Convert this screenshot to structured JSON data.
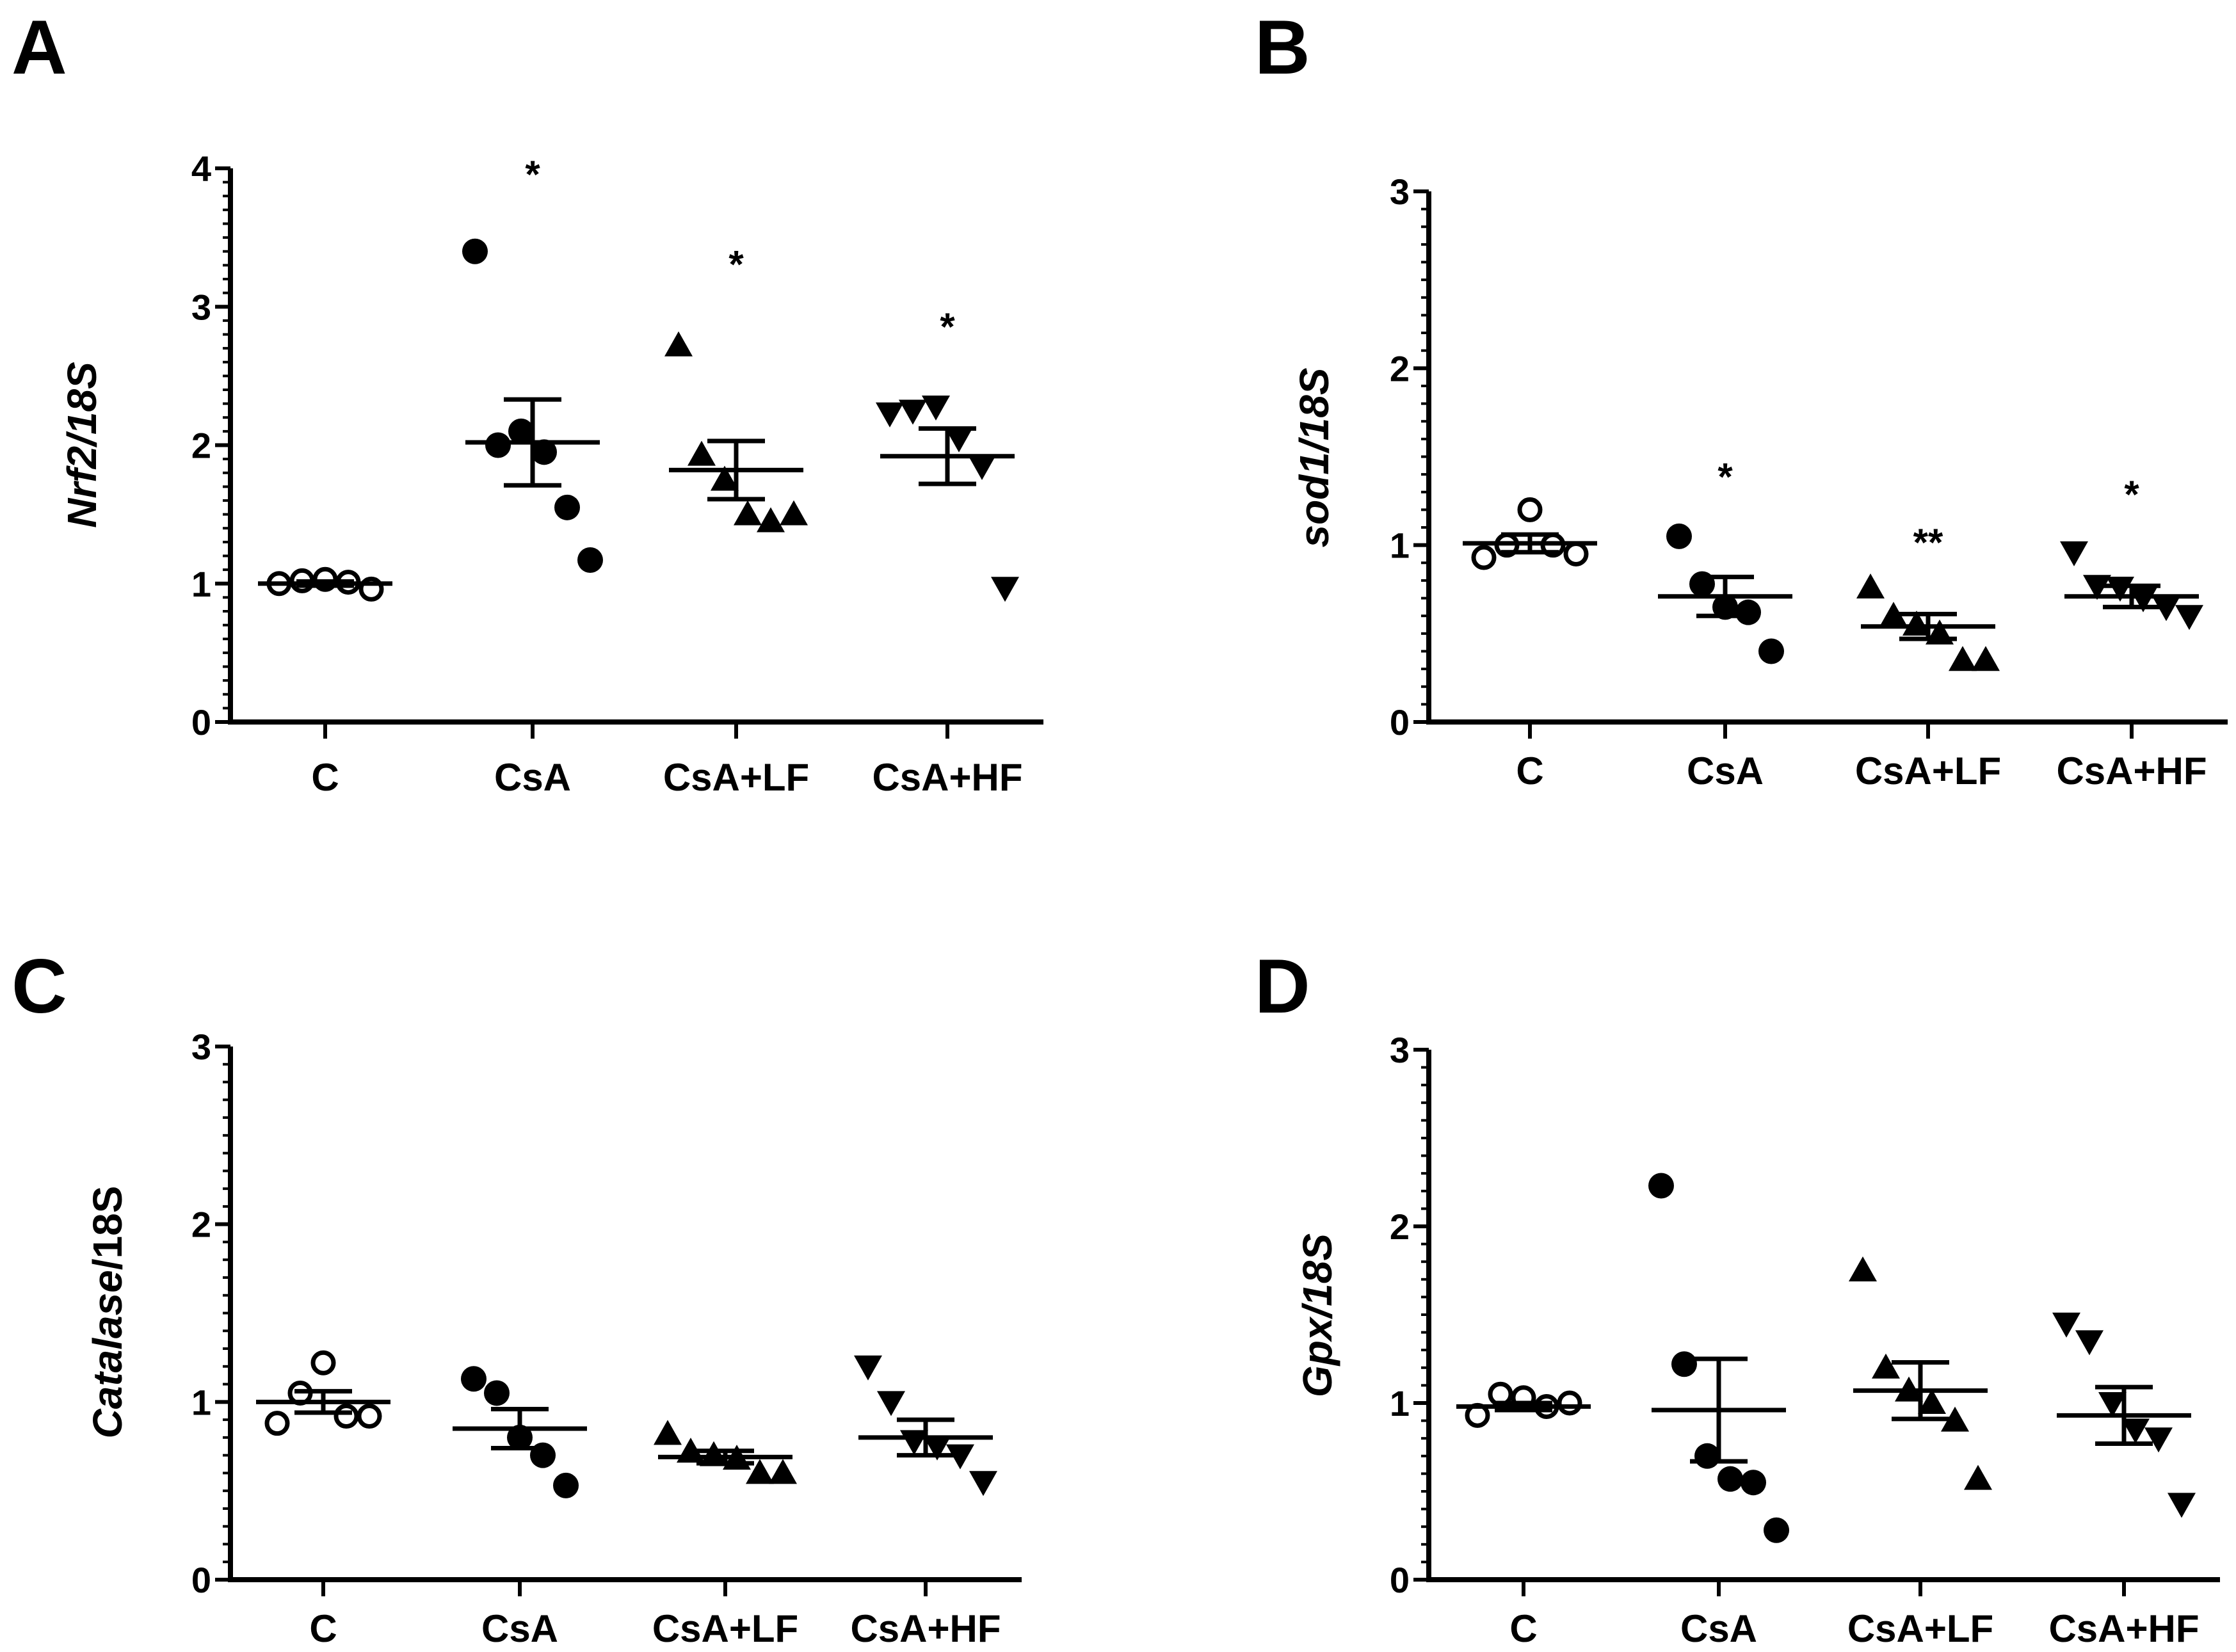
{
  "chart_data": [
    {
      "panel": "A",
      "type": "scatter",
      "ylabel_parts": [
        {
          "text": "Nrf2/18S",
          "italic": true
        }
      ],
      "ylim": [
        0,
        4
      ],
      "yticks": [
        0,
        1,
        2,
        3,
        4
      ],
      "categories": [
        "C",
        "CsA",
        "CsA+LF",
        "CsA+HF"
      ],
      "markers": [
        "circle-open",
        "circle-filled",
        "triangle-up",
        "triangle-down"
      ],
      "points": [
        [
          1.0,
          1.02,
          1.03,
          1.01,
          0.96
        ],
        [
          3.4,
          2.0,
          2.1,
          1.95,
          1.55,
          1.17
        ],
        [
          2.72,
          1.93,
          1.75,
          1.5,
          1.45,
          1.5
        ],
        [
          2.23,
          2.25,
          2.28,
          2.05,
          1.85,
          0.97
        ]
      ],
      "mean": [
        1.0,
        2.02,
        1.82,
        1.92
      ],
      "sem": [
        0.015,
        0.31,
        0.21,
        0.2
      ],
      "significance": [
        "",
        "*",
        "*",
        "*"
      ],
      "sig_y": [
        null,
        4.0,
        3.35,
        2.9
      ]
    },
    {
      "panel": "B",
      "type": "scatter",
      "ylabel_parts": [
        {
          "text": "sod1/18S",
          "italic": true
        }
      ],
      "ylim": [
        0,
        3
      ],
      "yticks": [
        0,
        1,
        2,
        3
      ],
      "categories": [
        "C",
        "CsA",
        "CsA+LF",
        "CsA+HF"
      ],
      "markers": [
        "circle-open",
        "circle-filled",
        "triangle-up",
        "triangle-down"
      ],
      "points": [
        [
          0.93,
          1.0,
          1.2,
          1.0,
          0.95
        ],
        [
          1.05,
          0.78,
          0.65,
          0.62,
          0.4
        ],
        [
          0.76,
          0.6,
          0.55,
          0.5,
          0.35,
          0.35
        ],
        [
          0.96,
          0.77,
          0.76,
          0.7,
          0.65,
          0.6
        ]
      ],
      "mean": [
        1.01,
        0.71,
        0.54,
        0.71
      ],
      "sem": [
        0.05,
        0.11,
        0.07,
        0.06
      ],
      "significance": [
        "",
        "*",
        "**",
        "*"
      ],
      "sig_y": [
        null,
        1.42,
        1.05,
        1.32
      ]
    },
    {
      "panel": "C",
      "type": "scatter",
      "ylabel_parts": [
        {
          "text": "Catalase",
          "italic": true
        },
        {
          "text": "/18S",
          "italic": false
        }
      ],
      "ylim": [
        0,
        3
      ],
      "yticks": [
        0,
        1,
        2,
        3
      ],
      "categories": [
        "C",
        "CsA",
        "CsA+LF",
        "CsA+HF"
      ],
      "markers": [
        "circle-open",
        "circle-filled",
        "triangle-up",
        "triangle-down"
      ],
      "points": [
        [
          0.88,
          1.05,
          1.22,
          0.92,
          0.92
        ],
        [
          1.13,
          1.05,
          0.8,
          0.7,
          0.53
        ],
        [
          0.82,
          0.72,
          0.7,
          0.68,
          0.6,
          0.6
        ],
        [
          1.2,
          1.0,
          0.78,
          0.75,
          0.7,
          0.55
        ]
      ],
      "mean": [
        1.0,
        0.85,
        0.69,
        0.8
      ],
      "sem": [
        0.06,
        0.11,
        0.035,
        0.1
      ],
      "significance": [
        "",
        "",
        "",
        ""
      ],
      "sig_y": [
        null,
        null,
        null,
        null
      ]
    },
    {
      "panel": "D",
      "type": "scatter",
      "ylabel_parts": [
        {
          "text": "Gpx/18S",
          "italic": true
        }
      ],
      "ylim": [
        0,
        3
      ],
      "yticks": [
        0,
        1,
        2,
        3
      ],
      "categories": [
        "C",
        "CsA",
        "CsA+LF",
        "CsA+HF"
      ],
      "markers": [
        "circle-open",
        "circle-filled",
        "triangle-up",
        "triangle-down"
      ],
      "points": [
        [
          0.93,
          1.05,
          1.03,
          0.98,
          1.0
        ],
        [
          2.23,
          1.22,
          0.7,
          0.57,
          0.55,
          0.28
        ],
        [
          1.75,
          1.2,
          1.07,
          1.0,
          0.9,
          0.57
        ],
        [
          1.45,
          1.35,
          1.0,
          0.85,
          0.8,
          0.43
        ]
      ],
      "mean": [
        0.98,
        0.96,
        1.07,
        0.93
      ],
      "sem": [
        0.02,
        0.29,
        0.16,
        0.16
      ],
      "significance": [
        "",
        "",
        "",
        ""
      ],
      "sig_y": [
        null,
        null,
        null,
        null
      ]
    }
  ]
}
